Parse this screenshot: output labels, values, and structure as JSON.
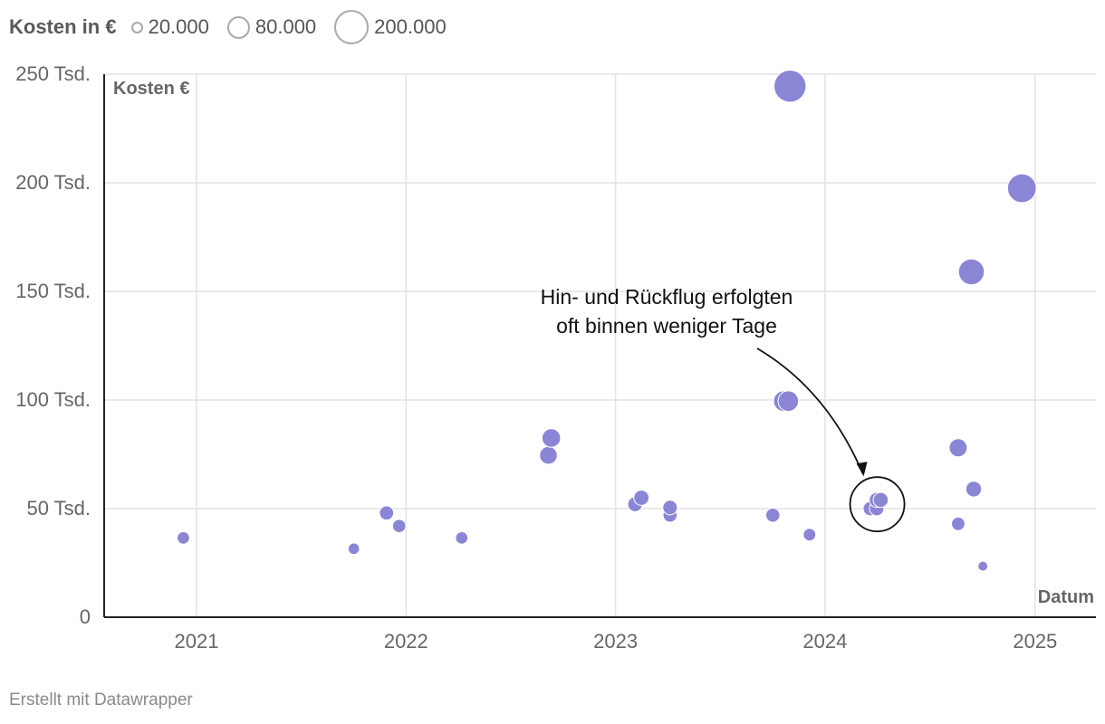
{
  "legend": {
    "title": "Kosten in €",
    "items": [
      {
        "label": "20.000",
        "value": 20000
      },
      {
        "label": "80.000",
        "value": 80000
      },
      {
        "label": "200.000",
        "value": 200000
      }
    ]
  },
  "footer": "Erstellt mit Datawrapper",
  "colors": {
    "bubble": "#8b85d6",
    "grid": "#e3e3e3",
    "axis": "#222222",
    "tick_text": "#666666"
  },
  "chart_data": {
    "type": "scatter",
    "title": "",
    "xlabel": "Datum",
    "ylabel": "Kosten €",
    "x_ticks": [
      "2021",
      "2022",
      "2023",
      "2024",
      "2025"
    ],
    "y_ticks": [
      {
        "value": 0,
        "label": "0"
      },
      {
        "value": 50000,
        "label": "50 Tsd."
      },
      {
        "value": 100000,
        "label": "100 Tsd."
      },
      {
        "value": 150000,
        "label": "150 Tsd."
      },
      {
        "value": 200000,
        "label": "200 Tsd."
      },
      {
        "value": 250000,
        "label": "250 Tsd."
      }
    ],
    "xlim": [
      "2020-07-24",
      "2025-04-17"
    ],
    "ylim": [
      0,
      250000
    ],
    "grid": true,
    "size_encoding": "Kosten in €",
    "points": [
      {
        "x": "2020-12-09",
        "y": 36500
      },
      {
        "x": "2021-10-02",
        "y": 31500
      },
      {
        "x": "2021-11-28",
        "y": 48000
      },
      {
        "x": "2021-12-20",
        "y": 42000
      },
      {
        "x": "2022-04-08",
        "y": 36500
      },
      {
        "x": "2022-09-06",
        "y": 74500
      },
      {
        "x": "2022-09-11",
        "y": 82500
      },
      {
        "x": "2023-02-04",
        "y": 52000
      },
      {
        "x": "2023-02-15",
        "y": 55000
      },
      {
        "x": "2023-04-06",
        "y": 47000
      },
      {
        "x": "2023-04-06",
        "y": 50500
      },
      {
        "x": "2023-10-02",
        "y": 47000
      },
      {
        "x": "2023-10-21",
        "y": 99500
      },
      {
        "x": "2023-10-29",
        "y": 99500
      },
      {
        "x": "2023-11-01",
        "y": 244500
      },
      {
        "x": "2023-12-05",
        "y": 38000
      },
      {
        "x": "2024-03-20",
        "y": 50000
      },
      {
        "x": "2024-03-31",
        "y": 50000
      },
      {
        "x": "2024-03-31",
        "y": 54000
      },
      {
        "x": "2024-04-07",
        "y": 54000
      },
      {
        "x": "2024-08-20",
        "y": 43000
      },
      {
        "x": "2024-08-20",
        "y": 78000
      },
      {
        "x": "2024-09-12",
        "y": 159000
      },
      {
        "x": "2024-09-16",
        "y": 59000
      },
      {
        "x": "2024-10-02",
        "y": 23500
      },
      {
        "x": "2024-12-09",
        "y": 197500
      }
    ],
    "annotations": [
      {
        "lines": [
          "Hin- und Rückflug erfolgten",
          "oft binnen weniger Tage"
        ],
        "target_x": "2024-04-01",
        "target_y": 52000
      }
    ]
  }
}
